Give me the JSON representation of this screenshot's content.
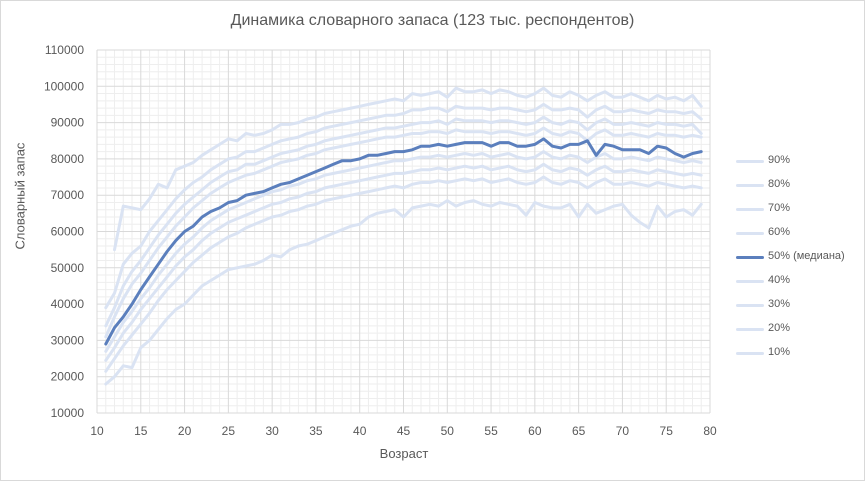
{
  "chart_data": {
    "type": "line",
    "title": "Динамика словарного запаса (123 тыс. респондентов)",
    "xlabel": "Возраст",
    "ylabel": "Словарный запас",
    "xlim": [
      10,
      80
    ],
    "ylim": [
      10000,
      110000
    ],
    "xticks": [
      10,
      15,
      20,
      25,
      30,
      35,
      40,
      45,
      50,
      55,
      60,
      65,
      70,
      75,
      80
    ],
    "yticks": [
      10000,
      20000,
      30000,
      40000,
      50000,
      60000,
      70000,
      80000,
      90000,
      100000,
      110000
    ],
    "grid": true,
    "legend_position": "right",
    "colors": {
      "percentile": "#dae3f3",
      "median": "#5b7fbd",
      "grid_major": "#d9d9d9",
      "grid_minor": "#eeeeee"
    },
    "x": [
      11,
      12,
      13,
      14,
      15,
      16,
      17,
      18,
      19,
      20,
      21,
      22,
      23,
      24,
      25,
      26,
      27,
      28,
      29,
      30,
      31,
      32,
      33,
      34,
      35,
      36,
      37,
      38,
      39,
      40,
      41,
      42,
      43,
      44,
      45,
      46,
      47,
      48,
      49,
      50,
      51,
      52,
      53,
      54,
      55,
      56,
      57,
      58,
      59,
      60,
      61,
      62,
      63,
      64,
      65,
      66,
      67,
      68,
      69,
      70,
      71,
      72,
      73,
      74,
      75,
      76,
      77,
      78,
      79
    ],
    "series": [
      {
        "name": "90%",
        "values": [
          null,
          55000,
          67000,
          66500,
          66000,
          69000,
          73000,
          72000,
          77000,
          78000,
          79000,
          81000,
          82500,
          84000,
          85500,
          85000,
          87000,
          86500,
          87000,
          88000,
          89500,
          89500,
          90000,
          91000,
          91500,
          92500,
          93000,
          93500,
          94000,
          94500,
          95000,
          95500,
          96000,
          96500,
          96000,
          98000,
          97500,
          98000,
          98500,
          97000,
          99500,
          98500,
          98500,
          99000,
          98000,
          99000,
          98500,
          97500,
          97000,
          98000,
          99500,
          97500,
          97000,
          98500,
          97500,
          96000,
          97500,
          98500,
          97000,
          97000,
          98000,
          97000,
          96000,
          97500,
          96500,
          97000,
          96000,
          97500,
          94500
        ]
      },
      {
        "name": "80%",
        "values": [
          39000,
          43000,
          51000,
          54000,
          56000,
          60000,
          63000,
          66000,
          69000,
          71500,
          73500,
          75000,
          77000,
          78500,
          80000,
          80500,
          82000,
          82000,
          83000,
          84000,
          85000,
          85500,
          86000,
          87000,
          87500,
          88500,
          89000,
          89500,
          90000,
          90500,
          91000,
          91500,
          92000,
          92000,
          92500,
          93500,
          93500,
          94000,
          94000,
          93000,
          94500,
          94000,
          94000,
          94000,
          93500,
          94000,
          94000,
          93500,
          93000,
          93500,
          95000,
          93500,
          93500,
          94000,
          93500,
          91500,
          93500,
          94500,
          93000,
          93000,
          93500,
          93000,
          92500,
          93500,
          93000,
          93000,
          92500,
          93000,
          91000
        ]
      },
      {
        "name": "70%",
        "values": [
          34000,
          39000,
          45000,
          49000,
          52000,
          55500,
          59000,
          62000,
          65000,
          67500,
          69500,
          71500,
          73500,
          75000,
          76500,
          77000,
          78500,
          78500,
          79500,
          80500,
          81500,
          82000,
          82500,
          83500,
          84000,
          85000,
          85500,
          86000,
          86500,
          87000,
          87500,
          88000,
          88500,
          88500,
          89000,
          89500,
          90000,
          90000,
          90500,
          89500,
          91000,
          90500,
          90500,
          90500,
          90000,
          90500,
          90500,
          90000,
          89500,
          90000,
          91500,
          90000,
          89500,
          90500,
          90000,
          88000,
          90000,
          91000,
          89500,
          89500,
          90000,
          89500,
          89000,
          90000,
          89500,
          89500,
          89000,
          89500,
          87000
        ]
      },
      {
        "name": "60%",
        "values": [
          31000,
          36500,
          41500,
          45500,
          48500,
          52000,
          55500,
          58500,
          61500,
          64000,
          66500,
          68500,
          70500,
          72000,
          73500,
          74500,
          75500,
          76000,
          77000,
          78000,
          79000,
          79500,
          80000,
          81000,
          81500,
          82500,
          83000,
          83500,
          84000,
          84500,
          85000,
          85500,
          86000,
          86000,
          86500,
          87000,
          87000,
          87500,
          87500,
          87000,
          88000,
          87500,
          87500,
          87500,
          87000,
          87500,
          87500,
          87000,
          86500,
          87000,
          88500,
          87000,
          86500,
          87500,
          87000,
          85000,
          87000,
          88000,
          86500,
          86500,
          87000,
          86500,
          86000,
          87000,
          86500,
          86500,
          86000,
          86500,
          86000
        ]
      },
      {
        "name": "50% (медиана)",
        "values": [
          29000,
          33500,
          36500,
          40000,
          44000,
          47500,
          51000,
          54500,
          57500,
          60000,
          61500,
          64000,
          65500,
          66500,
          68000,
          68500,
          70000,
          70500,
          71000,
          72000,
          73000,
          73500,
          74500,
          75500,
          76500,
          77500,
          78500,
          79500,
          79500,
          80000,
          81000,
          81000,
          81500,
          82000,
          82000,
          82500,
          83500,
          83500,
          84000,
          83500,
          84000,
          84500,
          84500,
          84500,
          83500,
          84500,
          84500,
          83500,
          83500,
          84000,
          85500,
          83500,
          83000,
          84000,
          84000,
          85000,
          81000,
          84000,
          83500,
          82500,
          82500,
          82500,
          81500,
          83500,
          83000,
          81500,
          80500,
          81500,
          82000
        ]
      },
      {
        "name": "40%",
        "values": [
          27000,
          31000,
          35000,
          38000,
          41500,
          44500,
          48000,
          51000,
          54000,
          56500,
          58500,
          61000,
          63000,
          64500,
          66000,
          67000,
          68000,
          69000,
          70000,
          71000,
          71500,
          72500,
          73000,
          74000,
          74500,
          75500,
          76000,
          76500,
          77000,
          77500,
          78000,
          78500,
          79000,
          79500,
          79500,
          80000,
          80500,
          80500,
          81000,
          80500,
          81000,
          81500,
          81000,
          81500,
          80500,
          81000,
          81500,
          80500,
          80000,
          80500,
          82000,
          80500,
          80000,
          81000,
          80500,
          79000,
          80500,
          81500,
          80000,
          80000,
          80500,
          80000,
          79500,
          80500,
          80000,
          79500,
          79000,
          79500,
          79000
        ]
      },
      {
        "name": "30%",
        "values": [
          24500,
          28000,
          32000,
          35000,
          38500,
          41500,
          44500,
          47500,
          50500,
          53000,
          55000,
          57500,
          59500,
          61000,
          62500,
          63500,
          64500,
          65500,
          66500,
          67500,
          68000,
          69000,
          69500,
          70500,
          71000,
          72000,
          72500,
          73000,
          73500,
          74000,
          74500,
          75000,
          75500,
          76000,
          76000,
          76500,
          77000,
          77000,
          77500,
          77000,
          77500,
          78000,
          77500,
          78000,
          77000,
          77500,
          78000,
          77000,
          76500,
          77000,
          78500,
          77000,
          76500,
          77500,
          77000,
          75500,
          77000,
          78000,
          76500,
          76500,
          77000,
          76500,
          76000,
          77000,
          76500,
          76000,
          75500,
          76000,
          75500
        ]
      },
      {
        "name": "20%",
        "values": [
          21500,
          25000,
          28500,
          31500,
          34500,
          37500,
          41000,
          44000,
          46500,
          49000,
          51500,
          53500,
          55500,
          57000,
          58500,
          59500,
          61000,
          62000,
          63000,
          64000,
          64500,
          65500,
          66000,
          67000,
          67500,
          68500,
          69000,
          69500,
          70000,
          70500,
          71000,
          71500,
          72000,
          72500,
          72000,
          73000,
          73500,
          73500,
          74000,
          73500,
          74000,
          74500,
          74000,
          74500,
          73500,
          74000,
          74500,
          73500,
          73000,
          73500,
          75000,
          73500,
          73000,
          74000,
          73500,
          72000,
          73500,
          74500,
          73000,
          73000,
          73500,
          73000,
          72500,
          73500,
          73000,
          72500,
          72000,
          72500,
          72000
        ]
      },
      {
        "name": "10%",
        "values": [
          18000,
          20000,
          23000,
          22500,
          28000,
          30000,
          33000,
          36000,
          38500,
          40000,
          42500,
          45000,
          46500,
          48000,
          49500,
          50000,
          50500,
          51000,
          52000,
          53500,
          53000,
          55000,
          56000,
          56500,
          57500,
          58500,
          59500,
          60500,
          61500,
          62000,
          64000,
          65000,
          65500,
          66000,
          64000,
          66500,
          67000,
          67500,
          67000,
          68500,
          67000,
          68000,
          68500,
          67500,
          67000,
          68000,
          67500,
          67000,
          64500,
          68000,
          67000,
          66500,
          66500,
          67500,
          64000,
          67500,
          65000,
          66000,
          67000,
          67500,
          64500,
          62500,
          61000,
          67000,
          64000,
          65500,
          66000,
          64500,
          67500
        ]
      }
    ]
  }
}
